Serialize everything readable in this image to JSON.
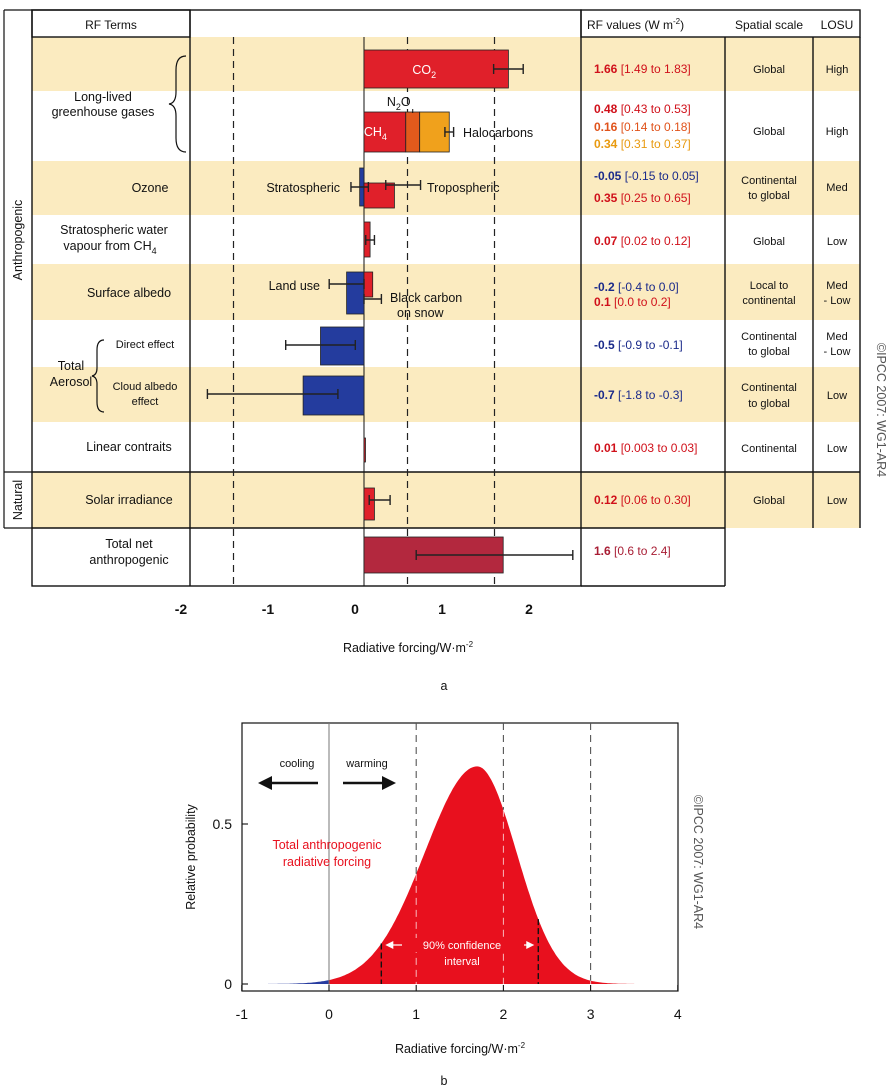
{
  "chart_data": [
    {
      "type": "bar",
      "panel_label": "a",
      "headers": {
        "rf_terms": "RF Terms",
        "rf_values": "RF values (W m",
        "rf_values_exp": "-2",
        "rf_values_close": ")",
        "spatial_scale": "Spatial scale",
        "losu": "LOSU"
      },
      "side_labels": {
        "anthropogenic": "Anthropogenic",
        "natural": "Natural"
      },
      "copyright": "©IPCC  2007: WG1-AR4",
      "xlabel": "Radiative forcing/W·m",
      "xlabel_exp": "-2",
      "xlim": [
        -2.6,
        2.0
      ],
      "xticks": [
        "-2",
        "-1",
        "0",
        "1",
        "2"
      ],
      "dashed_lines_x": [
        -1.5,
        0.5,
        1.5
      ],
      "rows": [
        {
          "label": "Long-lived greenhouse gases",
          "label_lines": [
            "Long-lived",
            "greenhouse gases"
          ],
          "span": 2,
          "shaded": true
        },
        {
          "label": "Ozone",
          "shaded": true
        },
        {
          "label": "Stratospheric water vapour from CH4",
          "label_lines": [
            "Stratospheric water",
            "vapour from CH"
          ],
          "label_sub": "4",
          "shaded": false
        },
        {
          "label": "Surface albedo",
          "shaded": true
        },
        {
          "label": "Total Aerosol",
          "label_lines": [
            "Total",
            "Aerosol"
          ],
          "sublabels": [
            "Direct effect",
            "Cloud albedo effect"
          ],
          "sublabel_lines": [
            [
              "Direct effect"
            ],
            [
              "Cloud albedo",
              "effect"
            ]
          ],
          "shaded": false
        },
        {
          "label": "Linear contraits",
          "shaded": false
        },
        {
          "label": "Solar irradiance",
          "shaded": true
        },
        {
          "label": "Total net anthropogenic",
          "label_lines": [
            "Total net",
            "anthropogenic"
          ],
          "shaded": false
        }
      ],
      "series": [
        {
          "name": "CO2",
          "value": 1.66,
          "low": 1.49,
          "high": 1.83,
          "color": "#e0202a",
          "bar_text": "CO",
          "bar_text_sub": "2"
        },
        {
          "name": "CH4",
          "value": 0.48,
          "low": 0.43,
          "high": 0.53,
          "color": "#e0202a",
          "bar_text": "CH",
          "bar_text_sub": "4"
        },
        {
          "name": "N2O",
          "value": 0.16,
          "low": 0.14,
          "high": 0.18,
          "color": "#e25a1c",
          "bar_text": "N",
          "bar_text_sub": "2",
          "bar_text_tail": "O"
        },
        {
          "name": "Halocarbons",
          "value": 0.34,
          "low": 0.31,
          "high": 0.37,
          "color": "#f0a11c",
          "bar_text": "Halocarbons"
        },
        {
          "name": "Stratospheric",
          "value": -0.05,
          "low": -0.15,
          "high": 0.05,
          "color": "#243c9e",
          "bar_text": "Stratospheric"
        },
        {
          "name": "Tropospheric",
          "value": 0.35,
          "low": 0.25,
          "high": 0.65,
          "color": "#e0202a",
          "bar_text": "Tropospheric"
        },
        {
          "name": "Stratospheric water vapour",
          "value": 0.07,
          "low": 0.02,
          "high": 0.12,
          "color": "#e0202a"
        },
        {
          "name": "Land use",
          "value": -0.2,
          "low": -0.4,
          "high": 0.0,
          "color": "#243c9e",
          "bar_text": "Land use"
        },
        {
          "name": "Black carbon on snow",
          "value": 0.1,
          "low": 0.0,
          "high": 0.2,
          "color": "#e0202a",
          "bar_text": "Black carbon",
          "bar_text_2": "on snow"
        },
        {
          "name": "Direct effect",
          "value": -0.5,
          "low": -0.9,
          "high": -0.1,
          "color": "#243c9e"
        },
        {
          "name": "Cloud albedo effect",
          "value": -0.7,
          "low": -1.8,
          "high": -0.3,
          "color": "#243c9e"
        },
        {
          "name": "Linear contrails",
          "value": 0.01,
          "low": 0.003,
          "high": 0.03,
          "color": "#e0202a"
        },
        {
          "name": "Solar irradiance",
          "value": 0.12,
          "low": 0.06,
          "high": 0.3,
          "color": "#e0202a"
        },
        {
          "name": "Total net anthropogenic",
          "value": 1.6,
          "low": 0.6,
          "high": 2.4,
          "color": "#b3283e"
        }
      ],
      "table": [
        {
          "values": [
            {
              "v": "1.66",
              "r": "[1.49 to 1.83]",
              "c": "#d0101a"
            }
          ],
          "scale": [
            "Global"
          ],
          "losu": [
            "High"
          ]
        },
        {
          "values": [
            {
              "v": "0.48",
              "r": "[0.43 to 0.53]",
              "c": "#d0101a"
            },
            {
              "v": "0.16",
              "r": "[0.14 to 0.18]",
              "c": "#e0521a"
            },
            {
              "v": "0.34",
              "r": "[0.31 to 0.37]",
              "c": "#e89a10"
            }
          ],
          "scale": [
            "Global"
          ],
          "losu": [
            "High"
          ]
        },
        {
          "values": [
            {
              "v": "-0.05",
              "r": "[-0.15 to 0.05]",
              "c": "#1a2a8a"
            },
            {
              "v": "0.35",
              "r": "[0.25 to 0.65]",
              "c": "#d0101a"
            }
          ],
          "scale": [
            "Continental",
            "to global"
          ],
          "losu": [
            "Med"
          ]
        },
        {
          "values": [
            {
              "v": "0.07",
              "r": "[0.02 to 0.12]",
              "c": "#d0101a"
            }
          ],
          "scale": [
            "Global"
          ],
          "losu": [
            "Low"
          ]
        },
        {
          "values": [
            {
              "v": "-0.2",
              "r": "[-0.4 to 0.0]",
              "c": "#1a2a8a"
            },
            {
              "v": "0.1",
              "r": "[0.0 to 0.2]",
              "c": "#d0101a"
            }
          ],
          "scale": [
            "Local to",
            "continental"
          ],
          "losu": [
            "Med",
            "- Low"
          ]
        },
        {
          "values": [
            {
              "v": "-0.5",
              "r": "[-0.9 to -0.1]",
              "c": "#1a2a8a"
            }
          ],
          "scale": [
            "Continental",
            "to global"
          ],
          "losu": [
            "Med",
            "- Low"
          ]
        },
        {
          "values": [
            {
              "v": "-0.7",
              "r": "[-1.8 to -0.3]",
              "c": "#1a2a8a"
            }
          ],
          "scale": [
            "Continental",
            "to global"
          ],
          "losu": [
            "Low"
          ]
        },
        {
          "values": [
            {
              "v": "0.01",
              "r": "[0.003 to 0.03]",
              "c": "#d0101a"
            }
          ],
          "scale": [
            "Continental"
          ],
          "losu": [
            "Low"
          ]
        },
        {
          "values": [
            {
              "v": "0.12",
              "r": "[0.06 to 0.30]",
              "c": "#d0101a"
            }
          ],
          "scale": [
            "Global"
          ],
          "losu": [
            "Low"
          ]
        },
        {
          "values": [
            {
              "v": "1.6",
              "r": "[0.6 to 2.4]",
              "c": "#a81d34"
            }
          ],
          "scale": [],
          "losu": []
        }
      ]
    },
    {
      "type": "area",
      "panel_label": "b",
      "copyright": "©IPCC  2007: WG1-AR4",
      "xlabel": "Radiative forcing/W·m",
      "xlabel_exp": "-2",
      "ylabel": "Relative probability",
      "xlim": [
        -1,
        4
      ],
      "ylim": [
        0,
        0.85
      ],
      "xticks": [
        "-1",
        "0",
        "1",
        "2",
        "3",
        "4"
      ],
      "yticks": [
        "0",
        "0.5"
      ],
      "series_label_lines": [
        "Total anthropogenic",
        "radiative forcing"
      ],
      "cooling_label": "cooling",
      "warming_label": "warming",
      "ci_label_lines": [
        "90% confidence",
        "interval"
      ],
      "ci": [
        0.6,
        2.4
      ],
      "dashed_lines_x": [
        1.0,
        2.0,
        3.0
      ],
      "curve": {
        "mode": 1.7,
        "peak": 0.68,
        "sigma_left": 0.6,
        "sigma_right": 0.45,
        "tail_start": -0.7,
        "tail_end": 3.5
      },
      "colors": {
        "positive": "#e8101e",
        "negative": "#283ca0"
      }
    }
  ]
}
